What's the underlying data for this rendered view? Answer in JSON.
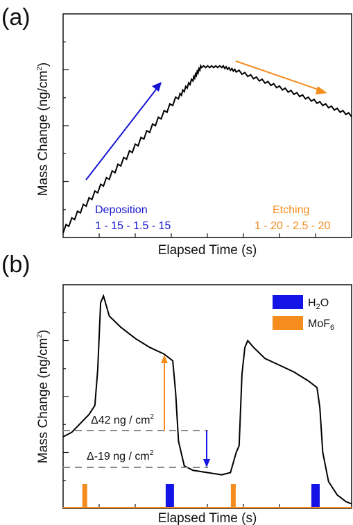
{
  "chart_data": [
    {
      "type": "line",
      "panel_label": "(a)",
      "xlabel": "Elapsed Time (s)",
      "ylabel": "Mass Change (ng/cm",
      "ylabel_sup": "2",
      "ylabel_end": ")",
      "xlim": [
        0,
        100
      ],
      "ylim": [
        0,
        100
      ],
      "tick_labels_shown": false,
      "series": [
        {
          "color": "#000000",
          "x": [
            0,
            10,
            20,
            30,
            40,
            45,
            48,
            55,
            60,
            70,
            80,
            90,
            100
          ],
          "y": [
            2,
            17,
            32,
            47,
            62,
            70,
            76,
            76,
            74,
            69,
            64,
            59,
            54
          ]
        }
      ],
      "annotations": {
        "deposition": {
          "label": "Deposition",
          "params": "1 - 15 - 1.5 - 15",
          "color": "#1414d2"
        },
        "etching": {
          "label": "Etching",
          "params": "1 - 20 - 2.5 - 20",
          "color": "#f58c1e"
        }
      }
    },
    {
      "type": "line",
      "panel_label": "(b)",
      "xlabel": "Elapsed Time (s)",
      "ylabel": "Mass Change (ng/cm",
      "ylabel_sup": "2",
      "ylabel_end": ")",
      "xlim": [
        0,
        100
      ],
      "ylim": [
        0,
        100
      ],
      "tick_labels_shown": false,
      "series": [
        {
          "color": "#000000",
          "x": [
            0,
            3,
            6,
            9,
            11,
            12,
            13,
            14,
            16,
            20,
            25,
            30,
            35,
            38,
            39,
            40,
            42,
            45,
            50,
            55,
            58,
            60,
            61,
            62,
            63,
            64,
            66,
            70,
            75,
            80,
            85,
            88,
            89,
            90,
            92,
            95,
            98,
            100
          ],
          "y": [
            32,
            34,
            38,
            42,
            46,
            62,
            92,
            95,
            86,
            81,
            76,
            72,
            69,
            66,
            52,
            30,
            19,
            17,
            16,
            15,
            16,
            25,
            28,
            60,
            72,
            75,
            72,
            67,
            64,
            61,
            57,
            54,
            45,
            25,
            12,
            6,
            3,
            2
          ]
        }
      ],
      "pulses": [
        {
          "x": 7.5,
          "type": "MoF6"
        },
        {
          "x": 37,
          "type": "H2O"
        },
        {
          "x": 59,
          "type": "MoF6"
        },
        {
          "x": 87.5,
          "type": "H2O"
        }
      ],
      "legend": [
        {
          "label": "H",
          "sub": "2",
          "label_end": "O",
          "color": "#1414e6"
        },
        {
          "label": "MoF",
          "sub": "6",
          "label_end": "",
          "color": "#f58c1e"
        }
      ],
      "annotations": {
        "delta1": {
          "label": "Δ42 ng / cm",
          "sup": "2"
        },
        "delta2": {
          "label": "Δ-19 ng / cm",
          "sup": "2"
        }
      },
      "legend_position": "top-right"
    }
  ]
}
